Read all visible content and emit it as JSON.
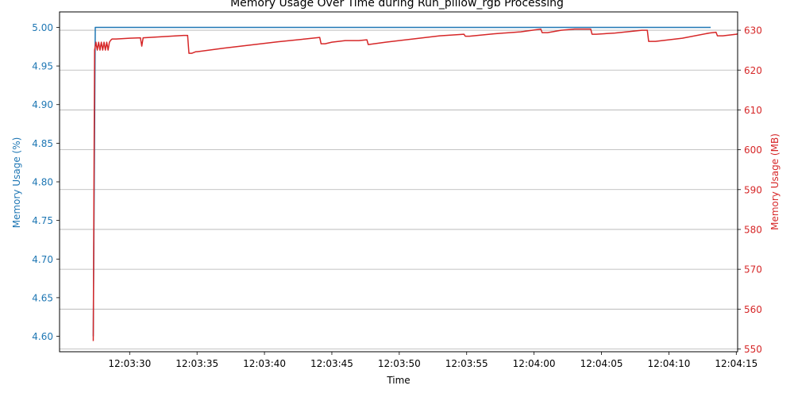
{
  "chart_data": {
    "type": "line",
    "title": "Memory Usage Over Time during Run_pillow_rgb Processing",
    "xlabel": "Time",
    "ylabel_left": "Memory Usage (%)",
    "ylabel_right": "Memory Usage (MB)",
    "colors": {
      "left": "#1f77b4",
      "right": "#d62728",
      "grid": "#b0b0b0"
    },
    "x_axis": {
      "unit": "seconds after 12:03:25",
      "range": [
        -0.2,
        50.1
      ],
      "ticks": [
        5,
        10,
        15,
        20,
        25,
        30,
        35,
        40,
        45,
        50
      ],
      "tick_labels": [
        "12:03:30",
        "12:03:35",
        "12:03:40",
        "12:03:45",
        "12:03:50",
        "12:03:55",
        "12:04:00",
        "12:04:05",
        "12:04:10",
        "12:04:15"
      ]
    },
    "y_left": {
      "range": [
        4.58,
        5.02
      ],
      "ticks": [
        4.6,
        4.65,
        4.7,
        4.75,
        4.8,
        4.85,
        4.9,
        4.95,
        5.0
      ],
      "tick_labels": [
        "4.60",
        "4.65",
        "4.70",
        "4.75",
        "4.80",
        "4.85",
        "4.90",
        "4.95",
        "5.00"
      ]
    },
    "y_right": {
      "range": [
        549.3,
        634.6
      ],
      "ticks": [
        550,
        560,
        570,
        580,
        590,
        600,
        610,
        620,
        630
      ],
      "tick_labels": [
        "550",
        "560",
        "570",
        "580",
        "590",
        "600",
        "610",
        "620",
        "630"
      ]
    },
    "grid": "y-right",
    "series": [
      {
        "axis": "left",
        "x": [
          2.3,
          2.45,
          48.1
        ],
        "y": [
          4.6,
          5.0,
          5.0
        ]
      },
      {
        "axis": "right",
        "x": [
          2.3,
          2.4,
          2.5,
          2.6,
          2.7,
          2.8,
          2.9,
          3.0,
          3.1,
          3.2,
          3.3,
          3.4,
          3.5,
          3.6,
          3.7,
          4.0,
          5.0,
          5.8,
          5.9,
          6.0,
          7.0,
          8.0,
          9.0,
          9.3,
          9.4,
          9.6,
          9.9,
          10,
          12,
          14,
          16,
          18,
          19.1,
          19.2,
          19.5,
          20,
          21,
          22,
          22.6,
          22.7,
          24,
          26,
          28,
          29.8,
          29.9,
          30.2,
          32,
          34,
          35.5,
          35.6,
          36,
          37,
          38,
          39.2,
          39.3,
          39.6,
          41,
          43,
          43.4,
          43.5,
          44,
          46,
          48,
          48.5,
          48.6,
          49,
          50,
          50.6,
          50.7,
          52,
          53
        ],
        "y": [
          552,
          625,
          627,
          625,
          627,
          625,
          627,
          625,
          627,
          625,
          627,
          625,
          627,
          627.5,
          627.8,
          627.8,
          628.0,
          628.1,
          626.0,
          628.1,
          628.3,
          628.5,
          628.7,
          628.7,
          624.2,
          624.2,
          624.6,
          624.6,
          625.5,
          626.3,
          627.1,
          627.8,
          628.2,
          626.6,
          626.6,
          627.0,
          627.4,
          627.4,
          627.6,
          626.4,
          627.0,
          627.8,
          628.6,
          629.0,
          628.5,
          628.5,
          629.1,
          629.6,
          630.3,
          629.4,
          629.4,
          630.0,
          630.3,
          630.3,
          629.0,
          629.0,
          629.3,
          630.0,
          630.0,
          627.2,
          627.2,
          628.0,
          629.3,
          629.5,
          628.6,
          628.6,
          629.0,
          629.5,
          628.4,
          628.4,
          630.0
        ]
      }
    ]
  }
}
